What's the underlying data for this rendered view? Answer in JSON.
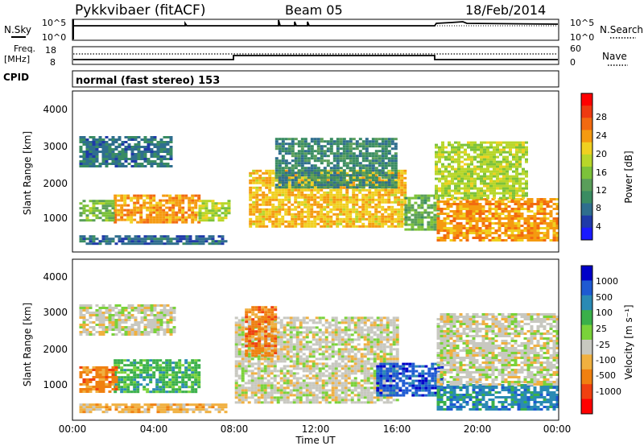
{
  "header": {
    "station": "Pykkvibaer (fitACF)",
    "beam": "Beam 05",
    "date": "18/Feb/2014"
  },
  "nsky_panel": {
    "left_label": "N.Sky",
    "left_ticks": [
      "10^5",
      "10^0"
    ],
    "right_ticks": [
      "10^5",
      "10^0"
    ],
    "right_label": "N.Search"
  },
  "freq_panel": {
    "left_label_line1": "Freq.",
    "left_label_line2": "[MHz]",
    "left_ticks": [
      "18",
      "8"
    ],
    "right_ticks": [
      "60",
      "0"
    ],
    "right_label": "Nave"
  },
  "cpid_panel": {
    "label": "CPID",
    "mode_text": "normal (fast stereo) 153"
  },
  "chart_data": [
    {
      "type": "heatmap",
      "quantity": "Power",
      "ylabel": "Slant Range [km]",
      "ylim": [
        0,
        4500
      ],
      "yticks": [
        "4000",
        "3000",
        "2000",
        "1000"
      ],
      "colorbar_label": "Power [dB]",
      "colorbar_ticks": [
        "28",
        "24",
        "20",
        "16",
        "12",
        "8",
        "4"
      ],
      "colorscale": [
        "#1a1aff",
        "#1f3aa8",
        "#2f6e8e",
        "#3a8c62",
        "#5a9e5a",
        "#7cc23a",
        "#b8d62a",
        "#f0d020",
        "#f59a10",
        "#f26a10",
        "#ee3a10",
        "#ff0000"
      ],
      "regions": [
        {
          "t": [
            0.3,
            4.9
          ],
          "r": [
            2400,
            3250
          ],
          "v": 6
        },
        {
          "t": [
            2.0,
            6.2
          ],
          "r": [
            800,
            1600
          ],
          "v": 22
        },
        {
          "t": [
            0.3,
            2.0
          ],
          "r": [
            850,
            1450
          ],
          "v": 13
        },
        {
          "t": [
            6.2,
            7.7
          ],
          "r": [
            850,
            1450
          ],
          "v": 16
        },
        {
          "t": [
            8.7,
            16.4
          ],
          "r": [
            700,
            2300
          ],
          "v": 20
        },
        {
          "t": [
            10.0,
            16.0
          ],
          "r": [
            1800,
            3200
          ],
          "v": 8
        },
        {
          "t": [
            16.4,
            18.0
          ],
          "r": [
            600,
            1600
          ],
          "v": 12
        },
        {
          "t": [
            18.0,
            24.0
          ],
          "r": [
            300,
            1500
          ],
          "v": 22
        },
        {
          "t": [
            17.9,
            22.5
          ],
          "r": [
            1500,
            3100
          ],
          "v": 16
        },
        {
          "t": [
            0.3,
            7.5
          ],
          "r": [
            180,
            450
          ],
          "v": 5
        }
      ]
    },
    {
      "type": "heatmap",
      "quantity": "Velocity",
      "xlabel": "Time UT",
      "ylabel": "Slant Range [km]",
      "ylim": [
        0,
        4500
      ],
      "yticks": [
        "4000",
        "3000",
        "2000",
        "1000"
      ],
      "xticks": [
        "00:00",
        "04:00",
        "08:00",
        "12:00",
        "16:00",
        "20:00",
        "00:00"
      ],
      "xlim_hours": [
        0,
        24
      ],
      "colorbar_label": "Velocity [m s⁻¹]",
      "colorbar_ticks": [
        "1000",
        "500",
        "100",
        "25",
        "-25",
        "-100",
        "-500",
        "-1000"
      ],
      "colorscale": [
        "#0000c8",
        "#1e5ad2",
        "#2a8ab4",
        "#3ab04a",
        "#7ad23a",
        "#c8c8c0",
        "#f0b040",
        "#f08010",
        "#f04010",
        "#ff0000"
      ],
      "regions": [
        {
          "t": [
            0.3,
            5.0
          ],
          "r": [
            2400,
            3250
          ],
          "v": 5
        },
        {
          "t": [
            2.0,
            6.3
          ],
          "r": [
            800,
            1700
          ],
          "v": 3
        },
        {
          "t": [
            0.3,
            2.2
          ],
          "r": [
            800,
            1500
          ],
          "v": 7
        },
        {
          "t": [
            8.0,
            16.0
          ],
          "r": [
            500,
            2900
          ],
          "v": 5
        },
        {
          "t": [
            8.5,
            10.0
          ],
          "r": [
            1800,
            3200
          ],
          "v": 7
        },
        {
          "t": [
            15.0,
            18.2
          ],
          "r": [
            700,
            1600
          ],
          "v": 1
        },
        {
          "t": [
            18.0,
            24.0
          ],
          "r": [
            300,
            1000
          ],
          "v": 2
        },
        {
          "t": [
            18.0,
            24.0
          ],
          "r": [
            1000,
            3000
          ],
          "v": 5
        },
        {
          "t": [
            0.3,
            7.5
          ],
          "r": [
            180,
            450
          ],
          "v": 6
        }
      ]
    }
  ]
}
